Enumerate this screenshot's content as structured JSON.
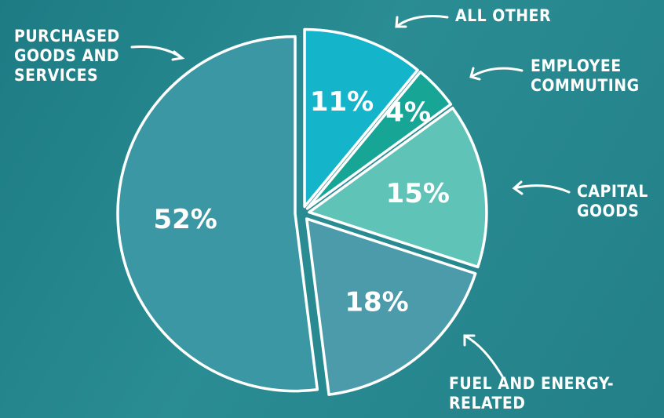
{
  "chart_data": {
    "type": "pie",
    "categories": [
      "ALL OTHER",
      "EMPLOYEE COMMUTING",
      "CAPITAL GOODS",
      "FUEL AND ENERGY-RELATED",
      "PURCHASED GOODS AND SERVICES"
    ],
    "values": [
      11,
      4,
      15,
      18,
      52
    ],
    "value_labels": [
      "11%",
      "4%",
      "15%",
      "18%",
      "52%"
    ],
    "colors": [
      "#14b4cb",
      "#17a596",
      "#5fc3b8",
      "#4c9bab",
      "#3b97a3"
    ]
  }
}
